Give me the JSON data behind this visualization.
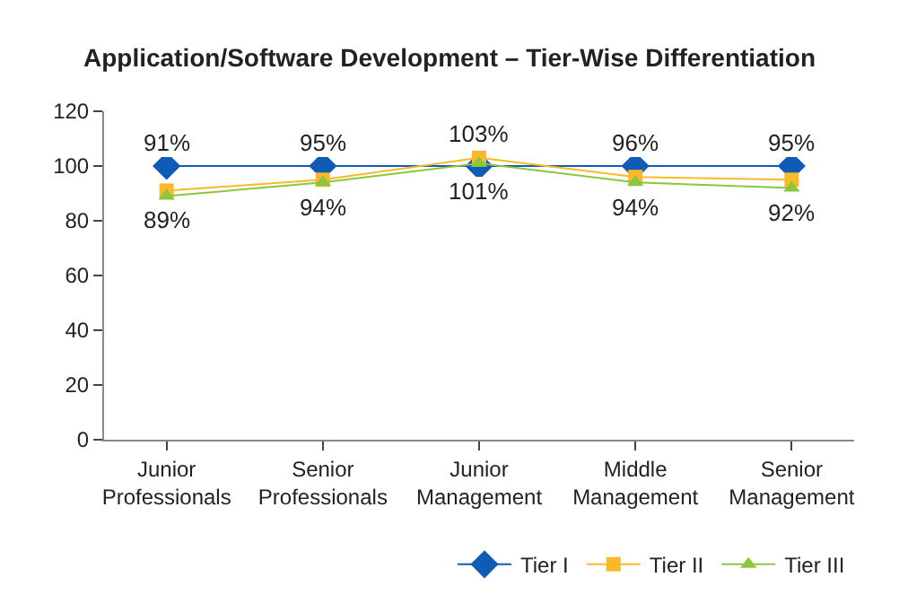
{
  "chart_data": {
    "type": "line",
    "title": "Application/Software Development – Tier-Wise Differentiation",
    "categories": [
      "Junior Professionals",
      "Senior Professionals",
      "Junior Management",
      "Middle Management",
      "Senior Management"
    ],
    "series": [
      {
        "name": "Tier I",
        "color": "#0f5bb5",
        "marker": "diamond",
        "values": [
          100,
          100,
          100,
          100,
          100
        ]
      },
      {
        "name": "Tier II",
        "color": "#fbb829",
        "marker": "square",
        "values": [
          91,
          95,
          103,
          96,
          95
        ],
        "value_labels": [
          "91%",
          "95%",
          "103%",
          "96%",
          "95%"
        ]
      },
      {
        "name": "Tier III",
        "color": "#8cc63f",
        "marker": "triangle",
        "values": [
          89,
          94,
          101,
          94,
          92
        ],
        "value_labels": [
          "89%",
          "94%",
          "101%",
          "94%",
          "92%"
        ]
      }
    ],
    "ylim": [
      0,
      120
    ],
    "yticks": [
      0,
      20,
      40,
      60,
      80,
      100,
      120
    ],
    "grid": false,
    "legend": "bottom"
  }
}
